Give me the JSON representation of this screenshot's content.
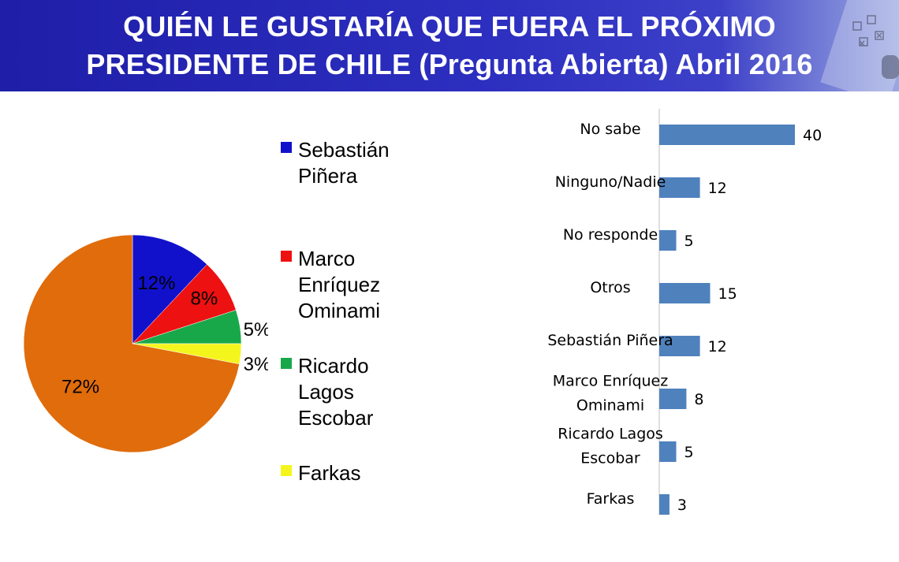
{
  "title": {
    "line1": "QUIÉN LE GUSTARÍA QUE FUERA EL PRÓXIMO",
    "line2": "PRESIDENTE DE CHILE (Pregunta Abierta) Abril 2016"
  },
  "chart_data": [
    {
      "type": "pie",
      "slices": [
        {
          "label": "Sebastián Piñera",
          "legend_lines": [
            "Sebastián",
            "Piñera"
          ],
          "value": 12,
          "value_label": "12%",
          "color": "#1111cc"
        },
        {
          "label": "Marco Enríquez Ominami",
          "legend_lines": [
            "Marco",
            "Enríquez",
            "Ominami"
          ],
          "value": 8,
          "value_label": "8%",
          "color": "#ee1111"
        },
        {
          "label": "Ricardo Lagos Escobar",
          "legend_lines": [
            "Ricardo",
            "Lagos",
            "Escobar"
          ],
          "value": 5,
          "value_label": "5%",
          "color": "#18a84a"
        },
        {
          "label": "Farkas",
          "legend_lines": [
            "Farkas"
          ],
          "value": 3,
          "value_label": "3%",
          "color": "#f5f51e"
        },
        {
          "label": "",
          "legend_lines": [],
          "value": 72,
          "value_label": "72%",
          "color": "#e06c0c"
        }
      ]
    },
    {
      "type": "bar",
      "orientation": "horizontal",
      "bar_color": "#4f81bd",
      "categories": [
        [
          "No sabe"
        ],
        [
          "Ninguno/Nadie"
        ],
        [
          "No responde"
        ],
        [
          "Otros"
        ],
        [
          "Sebastián Piñera"
        ],
        [
          "Marco Enríquez",
          "Ominami"
        ],
        [
          "Ricardo Lagos",
          "Escobar"
        ],
        [
          "Farkas"
        ]
      ],
      "values": [
        40,
        12,
        5,
        15,
        12,
        8,
        5,
        3
      ],
      "grid": false
    }
  ]
}
